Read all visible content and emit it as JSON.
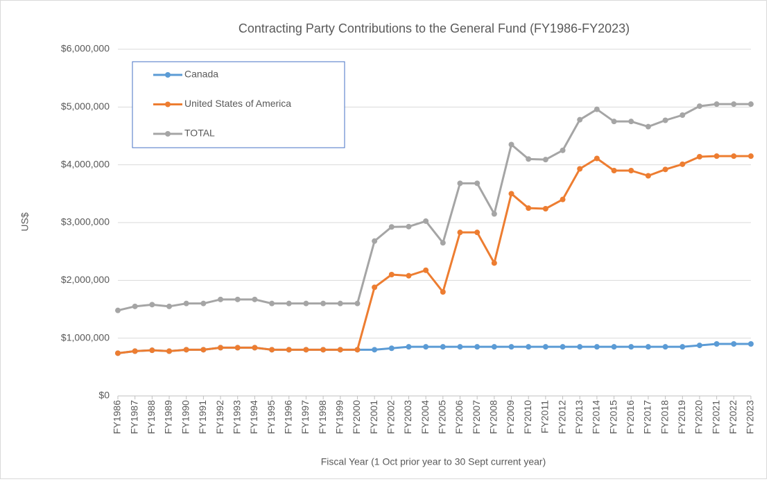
{
  "chart_data": {
    "type": "line",
    "title": "Contracting Party Contributions to the General Fund (FY1986-FY2023)",
    "x_label": "Fiscal Year (1 Oct prior year to 30 Sept current year)",
    "y_label": "US$",
    "categories": [
      "FY1986",
      "FY1987",
      "FY1988",
      "FY1989",
      "FY1990",
      "FY1991",
      "FY1992",
      "FY1993",
      "FY1994",
      "FY1995",
      "FY1996",
      "FY1997",
      "FY1998",
      "FY1999",
      "FY2000",
      "FY2001",
      "FY2002",
      "FY2003",
      "FY2004",
      "FY2005",
      "FY2006",
      "FY2007",
      "FY2008",
      "FY2009",
      "FY2010",
      "FY2011",
      "FY2012",
      "FY2013",
      "FY2014",
      "FY2015",
      "FY2016",
      "FY2017",
      "FY2018",
      "FY2019",
      "FY2020",
      "FY2021",
      "FY2022",
      "FY2023"
    ],
    "series": [
      {
        "name": "Canada",
        "color": "#5b9bd5",
        "values": [
          740000,
          775000,
          790000,
          775000,
          800000,
          800000,
          835000,
          835000,
          835000,
          800000,
          800000,
          800000,
          800000,
          800000,
          800000,
          800000,
          825000,
          850000,
          850000,
          850000,
          850000,
          850000,
          850000,
          850000,
          850000,
          850000,
          850000,
          850000,
          850000,
          850000,
          850000,
          850000,
          850000,
          850000,
          875000,
          900000,
          900000,
          900000
        ]
      },
      {
        "name": "United States of America",
        "color": "#ed7d31",
        "values": [
          740000,
          775000,
          790000,
          775000,
          800000,
          800000,
          835000,
          835000,
          835000,
          800000,
          800000,
          800000,
          800000,
          800000,
          800000,
          1880000,
          2100000,
          2080000,
          2175000,
          1800000,
          2830000,
          2830000,
          2300000,
          3500000,
          3250000,
          3240000,
          3400000,
          3930000,
          4110000,
          3900000,
          3900000,
          3810000,
          3920000,
          4010000,
          4140000,
          4150000,
          4150000,
          4150000
        ]
      },
      {
        "name": "TOTAL",
        "color": "#a5a5a5",
        "values": [
          1480000,
          1550000,
          1580000,
          1550000,
          1600000,
          1600000,
          1670000,
          1670000,
          1670000,
          1600000,
          1600000,
          1600000,
          1600000,
          1600000,
          1600000,
          2680000,
          2925000,
          2930000,
          3025000,
          2650000,
          3680000,
          3680000,
          3150000,
          4350000,
          4100000,
          4090000,
          4250000,
          4780000,
          4960000,
          4750000,
          4750000,
          4660000,
          4770000,
          4860000,
          5015000,
          5050000,
          5050000,
          5050000
        ]
      }
    ],
    "ylim": [
      0,
      6000000
    ],
    "yticks": [
      {
        "value": 0,
        "label": "$0"
      },
      {
        "value": 1000000,
        "label": "$1,000,000"
      },
      {
        "value": 2000000,
        "label": "$2,000,000"
      },
      {
        "value": 3000000,
        "label": "$3,000,000"
      },
      {
        "value": 4000000,
        "label": "$4,000,000"
      },
      {
        "value": 5000000,
        "label": "$5,000,000"
      },
      {
        "value": 6000000,
        "label": "$6,000,000"
      }
    ],
    "grid": true,
    "legend": "upper left"
  }
}
